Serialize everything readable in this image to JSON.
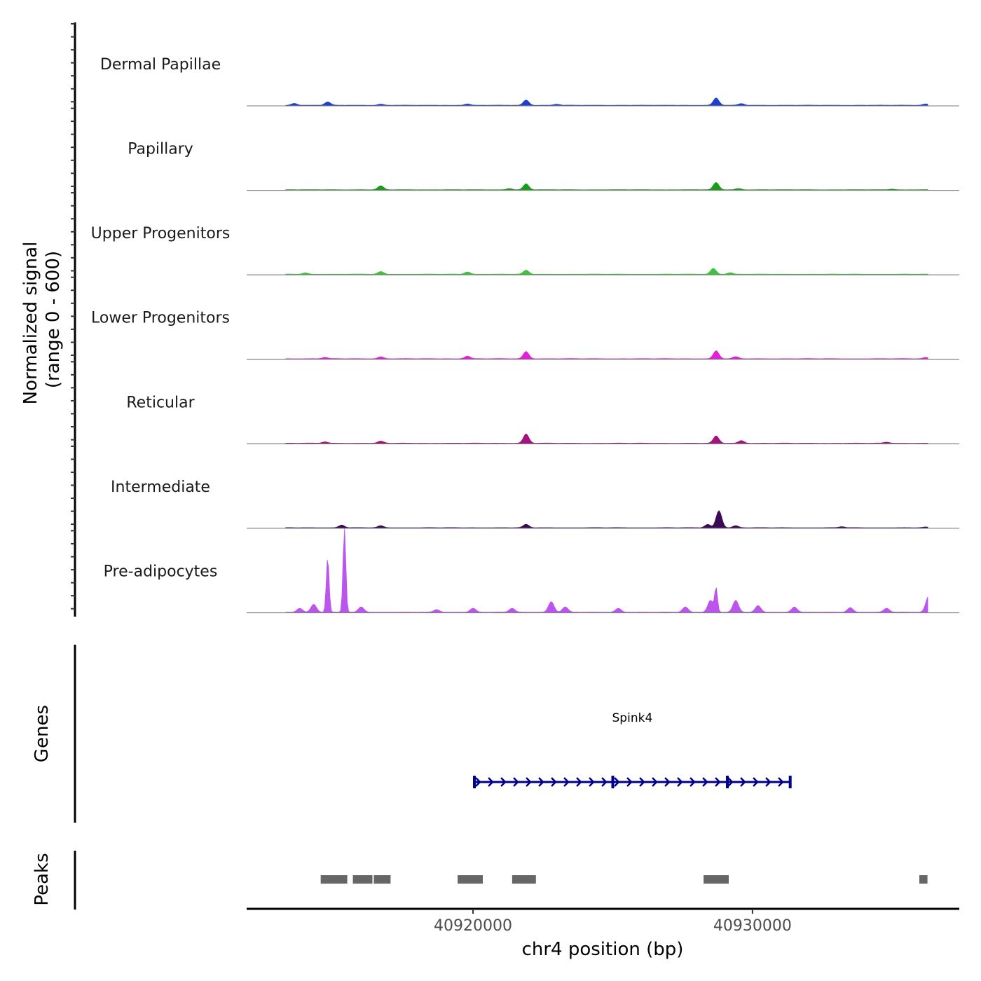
{
  "chart_data": {
    "type": "coverage",
    "chromosome": "chr4",
    "xlabel": "chr4 position (bp)",
    "xlim": [
      40911900,
      40937400
    ],
    "xticks": [
      40920000,
      40930000
    ],
    "xtick_labels": [
      "40920000",
      "40930000"
    ],
    "coverage": {
      "ylabel_line1": "Normalized signal",
      "ylabel_line2": "(range 0 - 600)",
      "ylim": [
        0,
        600
      ],
      "tracks": [
        {
          "name": "Dermal Papillae",
          "color": "#1f3fd1",
          "peaks": [
            [
              40913600,
              15
            ],
            [
              40914800,
              25
            ],
            [
              40916700,
              8
            ],
            [
              40919800,
              10
            ],
            [
              40921900,
              40
            ],
            [
              40923000,
              8
            ],
            [
              40928700,
              55
            ],
            [
              40929600,
              12
            ],
            [
              40936200,
              10
            ]
          ]
        },
        {
          "name": "Papillary",
          "color": "#1a9e1a",
          "peaks": [
            [
              40916700,
              30
            ],
            [
              40921300,
              10
            ],
            [
              40921900,
              45
            ],
            [
              40928700,
              55
            ],
            [
              40929500,
              10
            ],
            [
              40935000,
              5
            ]
          ]
        },
        {
          "name": "Upper Progenitors",
          "color": "#3cc43c",
          "peaks": [
            [
              40914000,
              10
            ],
            [
              40916700,
              20
            ],
            [
              40919800,
              18
            ],
            [
              40921900,
              30
            ],
            [
              40928600,
              45
            ],
            [
              40929200,
              12
            ]
          ]
        },
        {
          "name": "Lower Progenitors",
          "color": "#e21fd9",
          "peaks": [
            [
              40914700,
              10
            ],
            [
              40916700,
              15
            ],
            [
              40919800,
              20
            ],
            [
              40921900,
              55
            ],
            [
              40928700,
              60
            ],
            [
              40929400,
              15
            ],
            [
              40936200,
              10
            ]
          ]
        },
        {
          "name": "Reticular",
          "color": "#a4127d",
          "peaks": [
            [
              40914700,
              10
            ],
            [
              40916700,
              15
            ],
            [
              40921900,
              70
            ],
            [
              40928700,
              55
            ],
            [
              40929600,
              20
            ],
            [
              40934800,
              8
            ]
          ]
        },
        {
          "name": "Intermediate",
          "color": "#3b0a57",
          "peaks": [
            [
              40915300,
              20
            ],
            [
              40916700,
              15
            ],
            [
              40921900,
              25
            ],
            [
              40928400,
              25
            ],
            [
              40928800,
              130
            ],
            [
              40929400,
              15
            ],
            [
              40933200,
              8
            ],
            [
              40936200,
              5
            ]
          ]
        },
        {
          "name": "Pre-adipocytes",
          "color": "#bb55ee",
          "peaks": [
            [
              40913800,
              30
            ],
            [
              40914300,
              60
            ],
            [
              40914800,
              420
            ],
            [
              40915400,
              640
            ],
            [
              40916000,
              40
            ],
            [
              40918700,
              20
            ],
            [
              40920000,
              30
            ],
            [
              40921400,
              30
            ],
            [
              40922800,
              80
            ],
            [
              40923300,
              40
            ],
            [
              40925200,
              30
            ],
            [
              40927600,
              40
            ],
            [
              40928500,
              90
            ],
            [
              40928700,
              180
            ],
            [
              40929400,
              90
            ],
            [
              40930200,
              50
            ],
            [
              40931500,
              40
            ],
            [
              40933500,
              35
            ],
            [
              40934800,
              30
            ],
            [
              40936300,
              120
            ]
          ]
        }
      ]
    },
    "genes": {
      "label": "Genes",
      "items": [
        {
          "name": "Spink4",
          "start": 40920050,
          "end": 40931350,
          "strand": "+",
          "color": "#00008b",
          "exons": [
            40920050,
            40925000,
            40929100,
            40931350
          ]
        }
      ]
    },
    "peaks_track": {
      "label": "Peaks",
      "color": "#666666",
      "regions": [
        [
          40914550,
          40915500
        ],
        [
          40915700,
          40916400
        ],
        [
          40916450,
          40917050
        ],
        [
          40919450,
          40920350
        ],
        [
          40921400,
          40922250
        ],
        [
          40928250,
          40929150
        ],
        [
          40935970,
          40936260
        ]
      ]
    }
  }
}
